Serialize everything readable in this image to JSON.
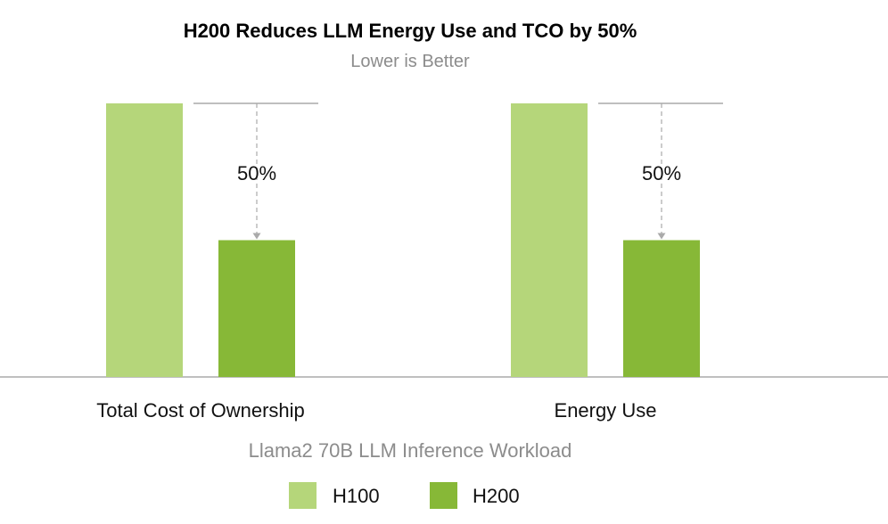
{
  "chart_data": {
    "type": "bar",
    "title": "H200 Reduces LLM Energy Use and TCO by 50%",
    "subtitle": "Lower is Better",
    "xlabel": "Llama2 70B LLM Inference Workload",
    "ylabel": "",
    "ylim": [
      0,
      1
    ],
    "grid": false,
    "legend_position": "bottom",
    "categories": [
      "Total Cost of Ownership",
      "Energy Use"
    ],
    "series": [
      {
        "name": "H100",
        "values": [
          1.0,
          1.0
        ],
        "color": "#b5d67a"
      },
      {
        "name": "H200",
        "values": [
          0.5,
          0.5
        ],
        "color": "#87b837"
      }
    ],
    "annotations": [
      {
        "category": "Total Cost of Ownership",
        "label": "50%"
      },
      {
        "category": "Energy Use",
        "label": "50%"
      }
    ]
  },
  "colors": {
    "title": "#000000",
    "subtitle": "#8c8c8c",
    "axis": "#aaaaaa",
    "category_label": "#111111",
    "xlabel": "#8c8c8c",
    "annotation_line": "#aaaaaa",
    "annotation_text": "#111111"
  }
}
